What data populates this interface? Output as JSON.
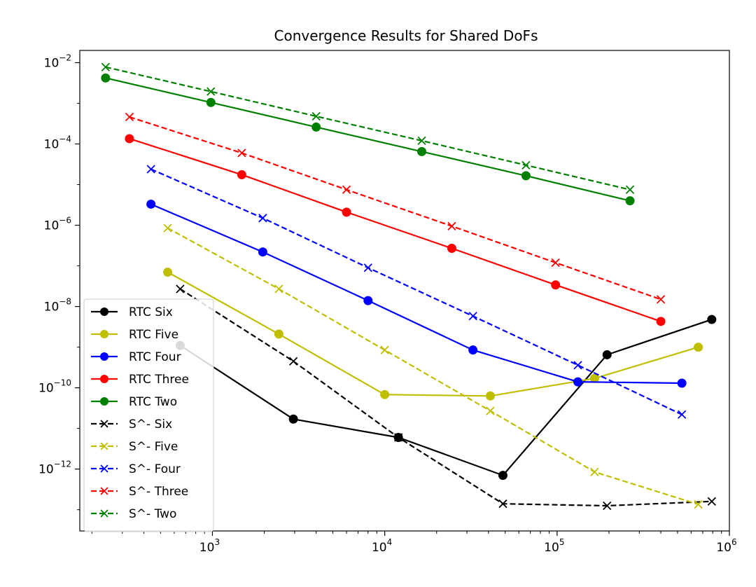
{
  "chart_data": {
    "type": "line",
    "title": "Convergence Results for Shared DoFs",
    "xlabel": "",
    "ylabel": "",
    "xscale": "log",
    "yscale": "log",
    "xlim": [
      170,
      1000000
    ],
    "ylim": [
      3e-14,
      0.02
    ],
    "x_ticks": [
      {
        "value": 1000,
        "base": "10",
        "exp": "3"
      },
      {
        "value": 10000,
        "base": "10",
        "exp": "4"
      },
      {
        "value": 100000,
        "base": "10",
        "exp": "5"
      },
      {
        "value": 1000000,
        "base": "10",
        "exp": "6"
      }
    ],
    "y_ticks": [
      {
        "value": 1e-12,
        "base": "10",
        "exp": "−12"
      },
      {
        "value": 1e-10,
        "base": "10",
        "exp": "−10"
      },
      {
        "value": 1e-08,
        "base": "10",
        "exp": "−8"
      },
      {
        "value": 1e-06,
        "base": "10",
        "exp": "−6"
      },
      {
        "value": 0.0001,
        "base": "10",
        "exp": "−4"
      },
      {
        "value": 0.01,
        "base": "10",
        "exp": "−2"
      }
    ],
    "grid": false,
    "legend_position": "lower-left",
    "series": [
      {
        "name": "RTC Six",
        "color": "#000000",
        "style": "solid",
        "marker": "circle",
        "x": [
          650,
          2950,
          12000,
          48500,
          195000,
          790000
        ],
        "y": [
          1.1e-09,
          1.7e-11,
          6e-12,
          7e-13,
          6.5e-10,
          4.8e-09
        ]
      },
      {
        "name": "RTC Five",
        "color": "#bfbf00",
        "style": "solid",
        "marker": "circle",
        "x": [
          550,
          2430,
          10000,
          41000,
          165000,
          660000
        ],
        "y": [
          7e-08,
          2.1e-09,
          6.8e-11,
          6.3e-11,
          1.7e-10,
          1e-09
        ]
      },
      {
        "name": "RTC Four",
        "color": "#0000ff",
        "style": "solid",
        "marker": "circle",
        "x": [
          440,
          1960,
          8000,
          32500,
          132000,
          530000
        ],
        "y": [
          3.3e-06,
          2.2e-07,
          1.4e-08,
          8.5e-10,
          1.4e-10,
          1.3e-10
        ]
      },
      {
        "name": "RTC Three",
        "color": "#ff0000",
        "style": "solid",
        "marker": "circle",
        "x": [
          330,
          1480,
          6000,
          24500,
          98000,
          400000
        ],
        "y": [
          0.000135,
          1.75e-05,
          2.1e-06,
          2.7e-07,
          3.4e-08,
          4.3e-09
        ]
      },
      {
        "name": "RTC Two",
        "color": "#008000",
        "style": "solid",
        "marker": "circle",
        "x": [
          240,
          980,
          4000,
          16400,
          66000,
          265000
        ],
        "y": [
          0.0042,
          0.00105,
          0.00026,
          6.5e-05,
          1.65e-05,
          4e-06
        ]
      },
      {
        "name": "S^- Six",
        "color": "#000000",
        "style": "dashed",
        "marker": "x",
        "x": [
          650,
          2950,
          12000,
          48500,
          195000,
          790000
        ],
        "y": [
          2.7e-08,
          4.5e-10,
          6e-12,
          1.4e-13,
          1.25e-13,
          1.6e-13
        ]
      },
      {
        "name": "S^- Five",
        "color": "#bfbf00",
        "style": "dashed",
        "marker": "x",
        "x": [
          550,
          2430,
          10000,
          41000,
          165000,
          660000
        ],
        "y": [
          8.5e-07,
          2.7e-08,
          8.5e-10,
          2.7e-11,
          8.5e-13,
          1.35e-13
        ]
      },
      {
        "name": "S^- Four",
        "color": "#0000ff",
        "style": "dashed",
        "marker": "x",
        "x": [
          440,
          1960,
          8000,
          32500,
          132000,
          530000
        ],
        "y": [
          2.4e-05,
          1.5e-06,
          9e-08,
          5.8e-09,
          3.6e-10,
          2.2e-11
        ]
      },
      {
        "name": "S^- Three",
        "color": "#ff0000",
        "style": "dashed",
        "marker": "x",
        "x": [
          330,
          1480,
          6000,
          24500,
          98000,
          400000
        ],
        "y": [
          0.00046,
          6e-05,
          7.5e-06,
          9.5e-07,
          1.2e-07,
          1.5e-08
        ]
      },
      {
        "name": "S^- Two",
        "color": "#008000",
        "style": "dashed",
        "marker": "x",
        "x": [
          240,
          980,
          4000,
          16400,
          66000,
          265000
        ],
        "y": [
          0.0078,
          0.00195,
          0.00048,
          0.00012,
          3e-05,
          7.5e-06
        ]
      }
    ]
  }
}
